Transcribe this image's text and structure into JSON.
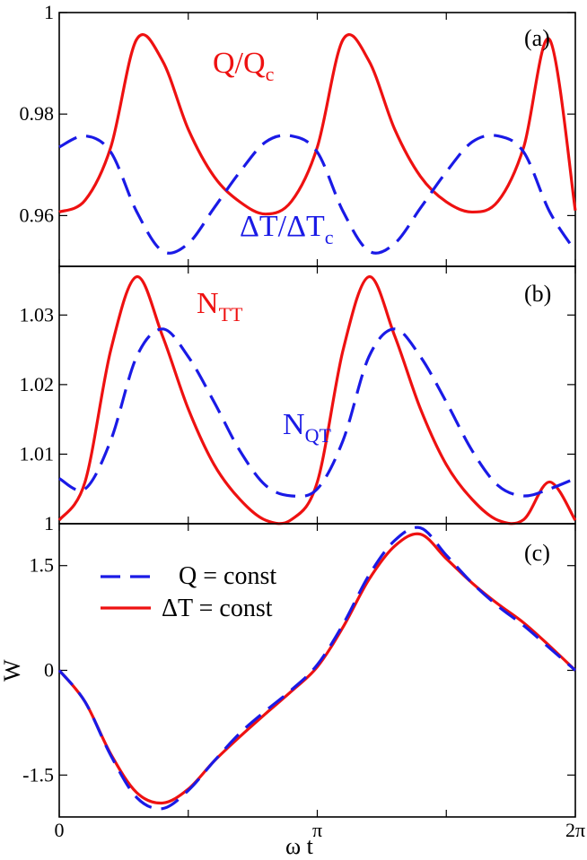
{
  "colors": {
    "red": "#ee1111",
    "blue": "#1a1ae6"
  },
  "chart_data": [
    {
      "panel": "(a)",
      "type": "line",
      "ylim": [
        0.95,
        1.0
      ],
      "yticks": [
        "1",
        "0.98",
        "0.96"
      ],
      "ytick_values": [
        1.0,
        0.98,
        0.96
      ],
      "annotations": [
        {
          "text": "Q/Q",
          "sub": "c",
          "color_key": "red"
        },
        {
          "text": "ΔT/ΔT",
          "sub": "c",
          "color_key": "blue"
        }
      ],
      "series": [
        {
          "name": "Q/Qc",
          "style": "solid",
          "color_key": "red",
          "x": [
            0,
            0.314,
            0.628,
            0.942,
            1.257,
            1.571,
            1.885,
            2.199,
            2.513,
            2.827,
            3.142,
            3.456,
            3.77,
            4.084,
            4.398,
            4.712,
            5.027,
            5.341,
            5.655,
            5.969,
            6.283
          ],
          "values": [
            0.9607,
            0.963,
            0.9735,
            0.9947,
            0.9905,
            0.977,
            0.9677,
            0.9627,
            0.9603,
            0.9628,
            0.9735,
            0.9947,
            0.9905,
            0.977,
            0.9677,
            0.9627,
            0.9607,
            0.9628,
            0.9735,
            0.9947,
            0.961
          ]
        },
        {
          "name": "ΔT/ΔTc",
          "style": "dashed",
          "color_key": "blue",
          "x": [
            0,
            0.314,
            0.628,
            0.942,
            1.257,
            1.571,
            1.885,
            2.199,
            2.513,
            2.827,
            3.142,
            3.456,
            3.77,
            4.084,
            4.398,
            4.712,
            5.027,
            5.341,
            5.655,
            5.969,
            6.283
          ],
          "values": [
            0.9735,
            0.9757,
            0.9725,
            0.9608,
            0.953,
            0.9545,
            0.9615,
            0.9686,
            0.9745,
            0.9757,
            0.9725,
            0.9608,
            0.953,
            0.9545,
            0.9615,
            0.9686,
            0.9745,
            0.9757,
            0.9725,
            0.9608,
            0.953
          ]
        }
      ]
    },
    {
      "panel": "(b)",
      "type": "line",
      "ylim": [
        1.0,
        1.037
      ],
      "yticks": [
        "1.03",
        "1.02",
        "1.01",
        "1"
      ],
      "ytick_values": [
        1.03,
        1.02,
        1.01,
        1.0
      ],
      "annotations": [
        {
          "text": "N",
          "sub": "TT",
          "color_key": "red"
        },
        {
          "text": "N",
          "sub": "QT",
          "color_key": "blue"
        }
      ],
      "series": [
        {
          "name": "NTT",
          "style": "solid",
          "color_key": "red",
          "x": [
            0,
            0.314,
            0.628,
            0.942,
            1.257,
            1.571,
            1.885,
            2.199,
            2.513,
            2.827,
            3.142,
            3.456,
            3.77,
            4.084,
            4.398,
            4.712,
            5.027,
            5.341,
            5.655,
            5.969,
            6.283
          ],
          "values": [
            1.0005,
            1.006,
            1.025,
            1.0355,
            1.027,
            1.0165,
            1.0085,
            1.0035,
            1.0005,
            1.0006,
            1.006,
            1.025,
            1.0355,
            1.027,
            1.0165,
            1.0085,
            1.0035,
            1.0005,
            1.0006,
            1.006,
            1.0005
          ]
        },
        {
          "name": "NQT",
          "style": "dashed",
          "color_key": "blue",
          "x": [
            0,
            0.314,
            0.628,
            0.942,
            1.257,
            1.571,
            1.885,
            2.199,
            2.513,
            2.827,
            3.142,
            3.456,
            3.77,
            4.084,
            4.398,
            4.712,
            5.027,
            5.341,
            5.655,
            5.969,
            6.283
          ],
          "values": [
            1.0065,
            1.005,
            1.012,
            1.024,
            1.028,
            1.024,
            1.0175,
            1.0105,
            1.0055,
            1.004,
            1.005,
            1.012,
            1.024,
            1.028,
            1.024,
            1.0175,
            1.0105,
            1.0055,
            1.004,
            1.005,
            1.0065
          ]
        }
      ]
    },
    {
      "panel": "(c)",
      "type": "line",
      "ylim": [
        -2.1,
        2.1
      ],
      "yticks": [
        "1.5",
        "0",
        "-1.5"
      ],
      "ytick_values": [
        1.5,
        0,
        -1.5
      ],
      "ylabel": "W",
      "xlabel": "ω t",
      "xticks": [
        "0",
        "π",
        "2π"
      ],
      "xtick_values": [
        0,
        3.14159,
        6.28318
      ],
      "xlim": [
        0,
        6.28318
      ],
      "legend": {
        "position": "top-left",
        "entries": [
          {
            "label": "Q = const",
            "style": "dashed",
            "color_key": "blue"
          },
          {
            "label": "ΔT = const",
            "style": "solid",
            "color_key": "red"
          }
        ]
      },
      "series": [
        {
          "name": "ΔT = const",
          "style": "solid",
          "color_key": "red",
          "x": [
            0,
            0.314,
            0.628,
            0.942,
            1.257,
            1.571,
            1.885,
            2.199,
            2.513,
            2.827,
            3.142,
            3.456,
            3.77,
            4.084,
            4.398,
            4.712,
            5.027,
            5.341,
            5.655,
            5.969,
            6.283
          ],
          "values": [
            0,
            -0.45,
            -1.2,
            -1.75,
            -1.9,
            -1.7,
            -1.3,
            -0.95,
            -0.62,
            -0.3,
            0.05,
            0.62,
            1.3,
            1.78,
            1.95,
            1.6,
            1.25,
            0.95,
            0.68,
            0.35,
            0
          ]
        },
        {
          "name": "Q = const",
          "style": "dashed",
          "color_key": "blue",
          "x": [
            0,
            0.314,
            0.628,
            0.942,
            1.257,
            1.571,
            1.885,
            2.199,
            2.513,
            2.827,
            3.142,
            3.456,
            3.77,
            4.084,
            4.398,
            4.712,
            5.027,
            5.341,
            5.655,
            5.969,
            6.283
          ],
          "values": [
            0,
            -0.45,
            -1.22,
            -1.82,
            -1.98,
            -1.72,
            -1.3,
            -0.9,
            -0.58,
            -0.28,
            0.08,
            0.66,
            1.36,
            1.86,
            2.04,
            1.65,
            1.25,
            0.92,
            0.64,
            0.32,
            0
          ]
        }
      ]
    }
  ]
}
